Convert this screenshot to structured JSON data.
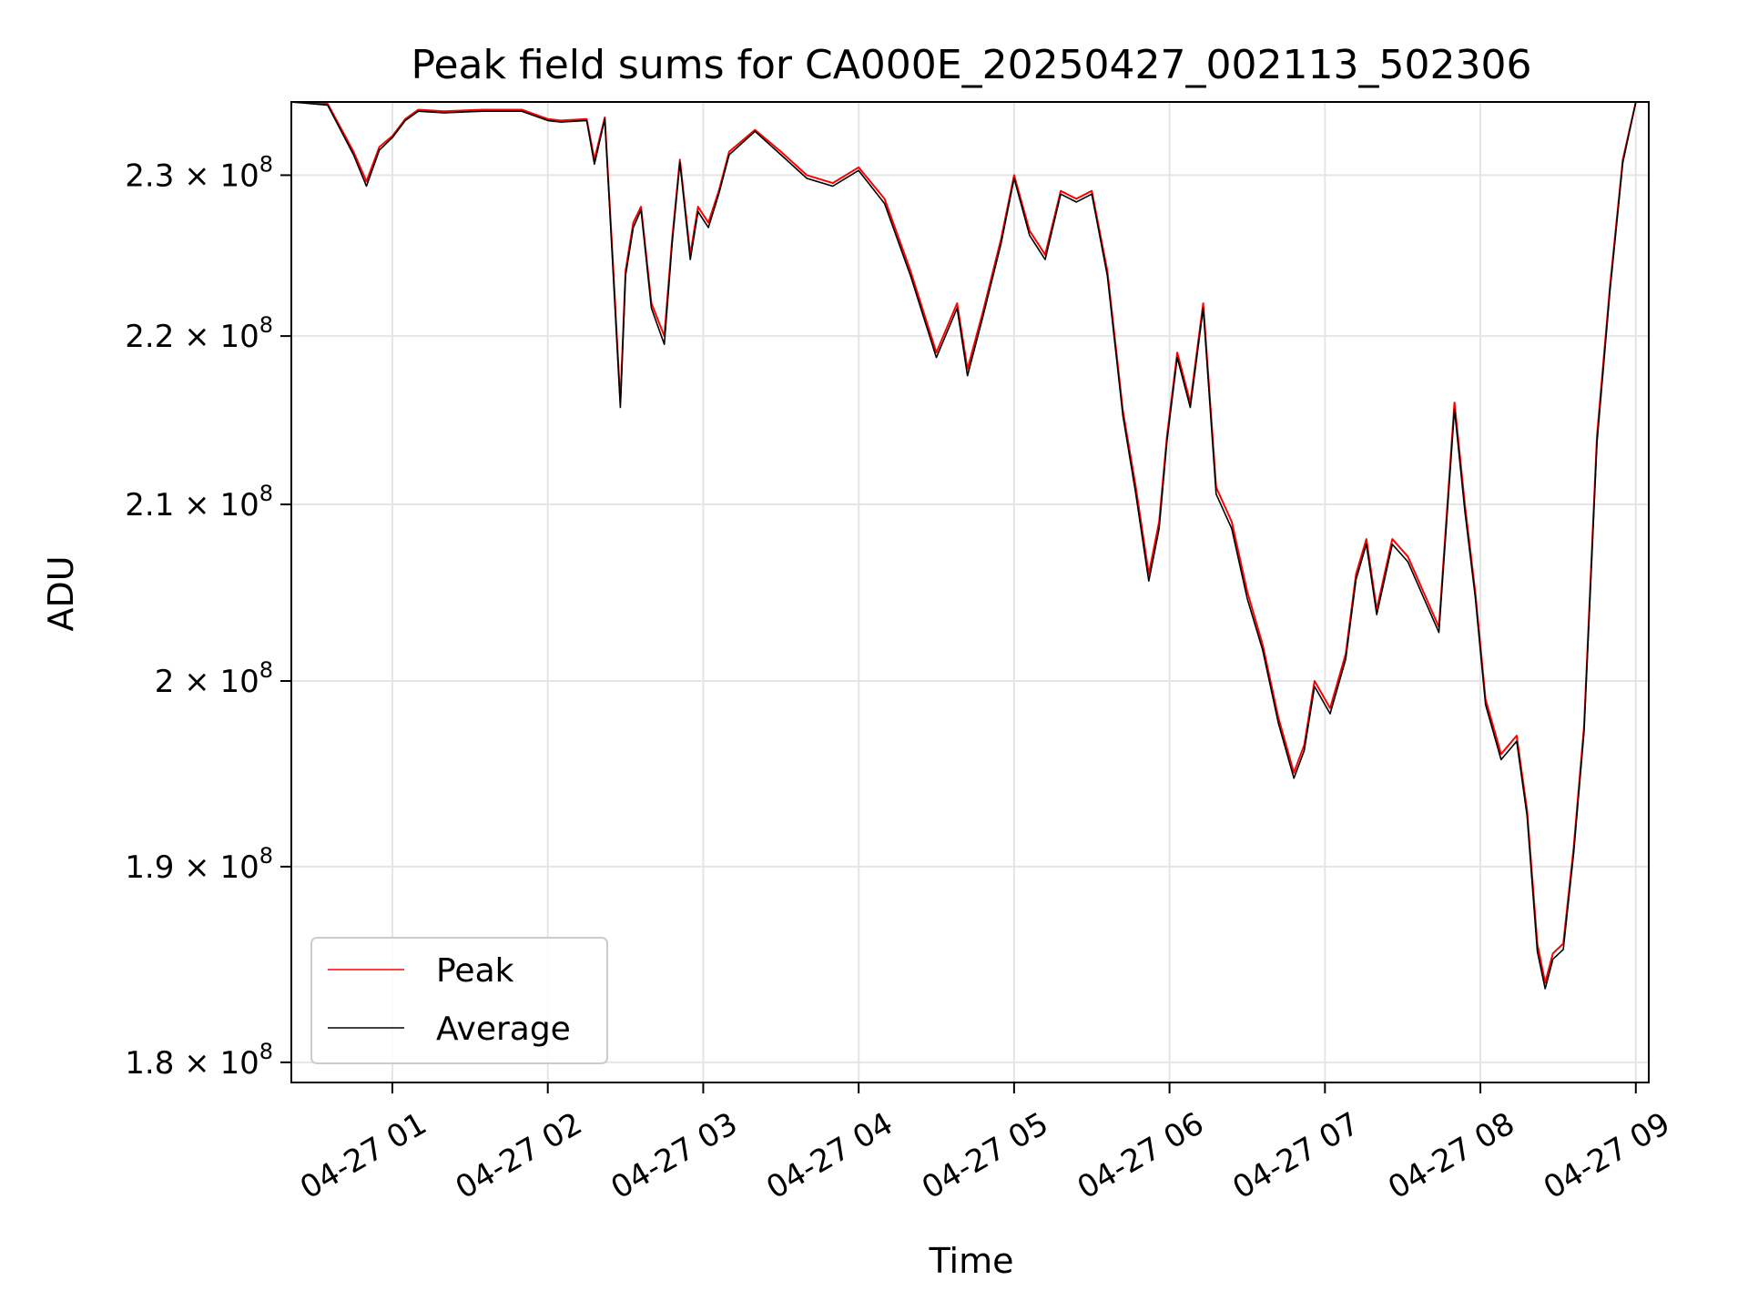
{
  "chart_data": {
    "type": "line",
    "title": "Peak field sums for CA000E_20250427_002113_502306",
    "xlabel": "Time",
    "ylabel": "ADU",
    "y_scale": "log",
    "ylim": [
      179000000,
      234700000
    ],
    "xlim": [
      "2025-04-27 00:21",
      "2025-04-27 09:05"
    ],
    "grid": true,
    "legend_position": "lower-left",
    "x_ticks": [
      {
        "t": "2025-04-27 01:00",
        "label": "04-27 01"
      },
      {
        "t": "2025-04-27 02:00",
        "label": "04-27 02"
      },
      {
        "t": "2025-04-27 03:00",
        "label": "04-27 03"
      },
      {
        "t": "2025-04-27 04:00",
        "label": "04-27 04"
      },
      {
        "t": "2025-04-27 05:00",
        "label": "04-27 05"
      },
      {
        "t": "2025-04-27 06:00",
        "label": "04-27 06"
      },
      {
        "t": "2025-04-27 07:00",
        "label": "04-27 07"
      },
      {
        "t": "2025-04-27 08:00",
        "label": "04-27 08"
      },
      {
        "t": "2025-04-27 09:00",
        "label": "04-27 09"
      }
    ],
    "y_ticks": [
      {
        "value": 180000000,
        "mantissa": "1.8",
        "exp": "8"
      },
      {
        "value": 190000000,
        "mantissa": "1.9",
        "exp": "8"
      },
      {
        "value": 200000000,
        "mantissa": "2",
        "exp": "8"
      },
      {
        "value": 210000000,
        "mantissa": "2.1",
        "exp": "8"
      },
      {
        "value": 220000000,
        "mantissa": "2.2",
        "exp": "8"
      },
      {
        "value": 230000000,
        "mantissa": "2.3",
        "exp": "8"
      }
    ],
    "series": [
      {
        "name": "Peak",
        "color": "#ff0000",
        "x": [
          "2025-04-27 00:21",
          "2025-04-27 00:35",
          "2025-04-27 00:45",
          "2025-04-27 00:50",
          "2025-04-27 00:55",
          "2025-04-27 01:00",
          "2025-04-27 01:05",
          "2025-04-27 01:10",
          "2025-04-27 01:20",
          "2025-04-27 01:35",
          "2025-04-27 01:50",
          "2025-04-27 02:00",
          "2025-04-27 02:05",
          "2025-04-27 02:15",
          "2025-04-27 02:18",
          "2025-04-27 02:22",
          "2025-04-27 02:25",
          "2025-04-27 02:28",
          "2025-04-27 02:30",
          "2025-04-27 02:33",
          "2025-04-27 02:36",
          "2025-04-27 02:40",
          "2025-04-27 02:45",
          "2025-04-27 02:48",
          "2025-04-27 02:51",
          "2025-04-27 02:55",
          "2025-04-27 02:58",
          "2025-04-27 03:02",
          "2025-04-27 03:06",
          "2025-04-27 03:10",
          "2025-04-27 03:20",
          "2025-04-27 03:30",
          "2025-04-27 03:40",
          "2025-04-27 03:50",
          "2025-04-27 04:00",
          "2025-04-27 04:10",
          "2025-04-27 04:20",
          "2025-04-27 04:30",
          "2025-04-27 04:38",
          "2025-04-27 04:42",
          "2025-04-27 04:48",
          "2025-04-27 04:55",
          "2025-04-27 05:00",
          "2025-04-27 05:06",
          "2025-04-27 05:12",
          "2025-04-27 05:18",
          "2025-04-27 05:24",
          "2025-04-27 05:30",
          "2025-04-27 05:36",
          "2025-04-27 05:42",
          "2025-04-27 05:47",
          "2025-04-27 05:52",
          "2025-04-27 05:56",
          "2025-04-27 05:59",
          "2025-04-27 06:03",
          "2025-04-27 06:08",
          "2025-04-27 06:13",
          "2025-04-27 06:18",
          "2025-04-27 06:24",
          "2025-04-27 06:30",
          "2025-04-27 06:36",
          "2025-04-27 06:42",
          "2025-04-27 06:48",
          "2025-04-27 06:52",
          "2025-04-27 06:56",
          "2025-04-27 07:02",
          "2025-04-27 07:08",
          "2025-04-27 07:12",
          "2025-04-27 07:16",
          "2025-04-27 07:20",
          "2025-04-27 07:26",
          "2025-04-27 07:32",
          "2025-04-27 07:38",
          "2025-04-27 07:44",
          "2025-04-27 07:50",
          "2025-04-27 07:54",
          "2025-04-27 07:58",
          "2025-04-27 08:02",
          "2025-04-27 08:08",
          "2025-04-27 08:14",
          "2025-04-27 08:18",
          "2025-04-27 08:22",
          "2025-04-27 08:25",
          "2025-04-27 08:28",
          "2025-04-27 08:32",
          "2025-04-27 08:36",
          "2025-04-27 08:40",
          "2025-04-27 08:45",
          "2025-04-27 08:50",
          "2025-04-27 08:55",
          "2025-04-27 09:00"
        ],
        "values": [
          234700000,
          234600000,
          231500000,
          229600000,
          231800000,
          232500000,
          233600000,
          234200000,
          234100000,
          234200000,
          234200000,
          233600000,
          233500000,
          233600000,
          231000000,
          233700000,
          225000000,
          216000000,
          224000000,
          227000000,
          228000000,
          222000000,
          220000000,
          226000000,
          231000000,
          225000000,
          228000000,
          227000000,
          229000000,
          231500000,
          232900000,
          231500000,
          230000000,
          229500000,
          230500000,
          228500000,
          224000000,
          219000000,
          222000000,
          218000000,
          221500000,
          226000000,
          230000000,
          226500000,
          225000000,
          229000000,
          228500000,
          229000000,
          224000000,
          215500000,
          211000000,
          206000000,
          209000000,
          214000000,
          219000000,
          216000000,
          222000000,
          211000000,
          209000000,
          205000000,
          202000000,
          198000000,
          195000000,
          196500000,
          200000000,
          198500000,
          201500000,
          206000000,
          208000000,
          204000000,
          208000000,
          207000000,
          205000000,
          203000000,
          216000000,
          210000000,
          205000000,
          199000000,
          196000000,
          197000000,
          193000000,
          186000000,
          184000000,
          185500000,
          186000000,
          191000000,
          197500000,
          214000000,
          223000000,
          231000000,
          234700000
        ]
      },
      {
        "name": "Average",
        "color": "#000000",
        "x": [
          "2025-04-27 00:21",
          "2025-04-27 00:35",
          "2025-04-27 00:45",
          "2025-04-27 00:50",
          "2025-04-27 00:55",
          "2025-04-27 01:00",
          "2025-04-27 01:05",
          "2025-04-27 01:10",
          "2025-04-27 01:20",
          "2025-04-27 01:35",
          "2025-04-27 01:50",
          "2025-04-27 02:00",
          "2025-04-27 02:05",
          "2025-04-27 02:15",
          "2025-04-27 02:18",
          "2025-04-27 02:22",
          "2025-04-27 02:25",
          "2025-04-27 02:28",
          "2025-04-27 02:30",
          "2025-04-27 02:33",
          "2025-04-27 02:36",
          "2025-04-27 02:40",
          "2025-04-27 02:45",
          "2025-04-27 02:48",
          "2025-04-27 02:51",
          "2025-04-27 02:55",
          "2025-04-27 02:58",
          "2025-04-27 03:02",
          "2025-04-27 03:06",
          "2025-04-27 03:10",
          "2025-04-27 03:20",
          "2025-04-27 03:30",
          "2025-04-27 03:40",
          "2025-04-27 03:50",
          "2025-04-27 04:00",
          "2025-04-27 04:10",
          "2025-04-27 04:20",
          "2025-04-27 04:30",
          "2025-04-27 04:38",
          "2025-04-27 04:42",
          "2025-04-27 04:48",
          "2025-04-27 04:55",
          "2025-04-27 05:00",
          "2025-04-27 05:06",
          "2025-04-27 05:12",
          "2025-04-27 05:18",
          "2025-04-27 05:24",
          "2025-04-27 05:30",
          "2025-04-27 05:36",
          "2025-04-27 05:42",
          "2025-04-27 05:47",
          "2025-04-27 05:52",
          "2025-04-27 05:56",
          "2025-04-27 05:59",
          "2025-04-27 06:03",
          "2025-04-27 06:08",
          "2025-04-27 06:13",
          "2025-04-27 06:18",
          "2025-04-27 06:24",
          "2025-04-27 06:30",
          "2025-04-27 06:36",
          "2025-04-27 06:42",
          "2025-04-27 06:48",
          "2025-04-27 06:52",
          "2025-04-27 06:56",
          "2025-04-27 07:02",
          "2025-04-27 07:08",
          "2025-04-27 07:12",
          "2025-04-27 07:16",
          "2025-04-27 07:20",
          "2025-04-27 07:26",
          "2025-04-27 07:32",
          "2025-04-27 07:38",
          "2025-04-27 07:44",
          "2025-04-27 07:50",
          "2025-04-27 07:54",
          "2025-04-27 07:58",
          "2025-04-27 08:02",
          "2025-04-27 08:08",
          "2025-04-27 08:14",
          "2025-04-27 08:18",
          "2025-04-27 08:22",
          "2025-04-27 08:25",
          "2025-04-27 08:28",
          "2025-04-27 08:32",
          "2025-04-27 08:36",
          "2025-04-27 08:40",
          "2025-04-27 08:45",
          "2025-04-27 08:50",
          "2025-04-27 08:55",
          "2025-04-27 09:00"
        ],
        "values": [
          234700000,
          234500000,
          231300000,
          229300000,
          231600000,
          232400000,
          233500000,
          234100000,
          234000000,
          234100000,
          234100000,
          233500000,
          233400000,
          233500000,
          230700000,
          233600000,
          224600000,
          215700000,
          223700000,
          226700000,
          227800000,
          221700000,
          219500000,
          225700000,
          230800000,
          224700000,
          227700000,
          226700000,
          228800000,
          231300000,
          232800000,
          231300000,
          229800000,
          229300000,
          230300000,
          228200000,
          223700000,
          218700000,
          221700000,
          217600000,
          221200000,
          225700000,
          229800000,
          226200000,
          224700000,
          228800000,
          228300000,
          228800000,
          223700000,
          215200000,
          210600000,
          205600000,
          208600000,
          213700000,
          218700000,
          215700000,
          221700000,
          210600000,
          208600000,
          204600000,
          201700000,
          197700000,
          194700000,
          196200000,
          199700000,
          198200000,
          201200000,
          205700000,
          207700000,
          203700000,
          207700000,
          206700000,
          204700000,
          202700000,
          215600000,
          209600000,
          204700000,
          198700000,
          195700000,
          196700000,
          192700000,
          185600000,
          183700000,
          185200000,
          185700000,
          190700000,
          197200000,
          213600000,
          222700000,
          230800000,
          234700000
        ]
      }
    ]
  }
}
